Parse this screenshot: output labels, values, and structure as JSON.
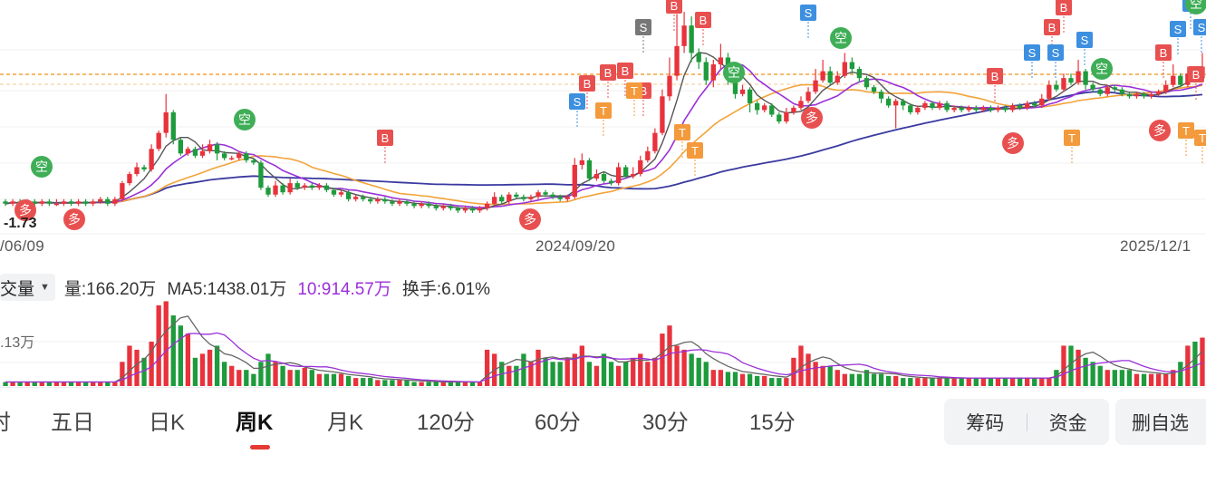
{
  "chart": {
    "low_label": "-1.73",
    "x_labels": [
      {
        "text": "/06/09"
      },
      {
        "text": "2024/09/20"
      },
      {
        "text": "2025/12/1"
      }
    ]
  },
  "markers": {
    "buy": "B",
    "sell": "S",
    "long": "多",
    "short": "空",
    "t": "T"
  },
  "volume": {
    "selector": "交量",
    "vol_text": "量:166.20万",
    "ma5_text": "MA5:1438.01万",
    "ma10_text": "10:914.57万",
    "turnover_text": "换手:6.01%",
    "axis_label": ".13万"
  },
  "tabs": [
    {
      "label": "时"
    },
    {
      "label": "五日"
    },
    {
      "label": "日K"
    },
    {
      "label": "周K"
    },
    {
      "label": "月K"
    },
    {
      "label": "120分"
    },
    {
      "label": "60分"
    },
    {
      "label": "30分"
    },
    {
      "label": "15分"
    }
  ],
  "buttons": {
    "chips": "筹码",
    "funds": "资金",
    "remove": "删自选"
  },
  "colors": {
    "up": "#e8323c",
    "down": "#1e9b3c",
    "ma5": "#555555",
    "ma10": "#9b30d9",
    "ma20": "#f2a33a",
    "ma60": "#3a3aa0",
    "buy": "#e85050",
    "sell": "#3d8fe0",
    "short": "#3fae57",
    "t": "#f39a3c"
  },
  "chart_data": {
    "type": "candlestick",
    "period": "weekly",
    "candles": [
      [
        3.1,
        3.0,
        3.2,
        2.9
      ],
      [
        3.0,
        3.1,
        3.2,
        2.9
      ],
      [
        3.1,
        3.0,
        3.2,
        2.9
      ],
      [
        3.0,
        3.1,
        3.2,
        2.9
      ],
      [
        3.1,
        3.0,
        3.2,
        2.9
      ],
      [
        3.0,
        3.1,
        3.2,
        2.9
      ],
      [
        3.1,
        3.0,
        3.2,
        2.9
      ],
      [
        3.0,
        3.0,
        3.2,
        2.9
      ],
      [
        3.0,
        3.1,
        3.2,
        2.9
      ],
      [
        3.1,
        3.0,
        3.2,
        2.9
      ],
      [
        3.0,
        3.1,
        3.2,
        2.9
      ],
      [
        3.1,
        3.0,
        3.2,
        2.9
      ],
      [
        3.0,
        3.1,
        3.2,
        2.9
      ],
      [
        3.1,
        3.2,
        3.3,
        3.0
      ],
      [
        3.2,
        3.0,
        3.3,
        2.9
      ],
      [
        3.0,
        3.2,
        3.3,
        2.9
      ],
      [
        3.2,
        3.9,
        4.0,
        3.1
      ],
      [
        3.9,
        4.3,
        4.4,
        3.8
      ],
      [
        4.3,
        4.6,
        4.8,
        4.2
      ],
      [
        4.6,
        4.5,
        4.7,
        4.4
      ],
      [
        4.5,
        5.4,
        5.6,
        4.4
      ],
      [
        5.4,
        6.1,
        6.2,
        5.3
      ],
      [
        6.1,
        7.0,
        7.8,
        5.9
      ],
      [
        7.0,
        5.8,
        7.1,
        5.6
      ],
      [
        5.8,
        5.2,
        5.9,
        5.1
      ],
      [
        5.2,
        5.4,
        5.5,
        5.1
      ],
      [
        5.4,
        5.1,
        5.5,
        5.0
      ],
      [
        5.1,
        5.3,
        5.6,
        5.0
      ],
      [
        5.3,
        5.6,
        5.8,
        5.2
      ],
      [
        5.6,
        5.2,
        5.7,
        4.9
      ],
      [
        5.2,
        5.0,
        5.3,
        4.9
      ],
      [
        5.0,
        5.0,
        5.1,
        4.9
      ],
      [
        5.0,
        5.2,
        5.3,
        4.9
      ],
      [
        5.2,
        4.9,
        5.3,
        4.8
      ],
      [
        4.9,
        4.8,
        5.0,
        4.7
      ],
      [
        4.8,
        3.7,
        4.9,
        3.6
      ],
      [
        3.7,
        3.4,
        3.8,
        3.3
      ],
      [
        3.4,
        3.8,
        4.0,
        3.3
      ],
      [
        3.8,
        3.5,
        3.9,
        3.4
      ],
      [
        3.5,
        3.9,
        4.1,
        3.4
      ],
      [
        3.9,
        3.7,
        4.0,
        3.6
      ],
      [
        3.7,
        3.8,
        3.9,
        3.6
      ],
      [
        3.8,
        3.7,
        3.9,
        3.6
      ],
      [
        3.7,
        3.8,
        3.9,
        3.6
      ],
      [
        3.8,
        3.6,
        3.9,
        3.5
      ],
      [
        3.6,
        3.4,
        3.7,
        3.3
      ],
      [
        3.4,
        3.5,
        3.6,
        3.3
      ],
      [
        3.5,
        3.2,
        3.6,
        3.1
      ],
      [
        3.2,
        3.3,
        3.4,
        3.1
      ],
      [
        3.3,
        3.2,
        3.4,
        3.1
      ],
      [
        3.2,
        3.1,
        3.3,
        3.0
      ],
      [
        3.1,
        3.2,
        3.3,
        3.0
      ],
      [
        3.2,
        3.1,
        3.3,
        3.0
      ],
      [
        3.1,
        3.0,
        3.2,
        2.9
      ],
      [
        3.0,
        3.1,
        3.2,
        2.9
      ],
      [
        3.1,
        3.0,
        3.2,
        2.9
      ],
      [
        3.0,
        2.9,
        3.1,
        2.8
      ],
      [
        2.9,
        3.0,
        3.1,
        2.8
      ],
      [
        3.0,
        2.9,
        3.1,
        2.8
      ],
      [
        2.9,
        2.8,
        3.0,
        2.7
      ],
      [
        2.8,
        2.9,
        3.0,
        2.7
      ],
      [
        2.9,
        2.8,
        3.0,
        2.7
      ],
      [
        2.8,
        2.7,
        2.9,
        2.6
      ],
      [
        2.7,
        2.8,
        2.9,
        2.6
      ],
      [
        2.8,
        2.7,
        2.9,
        2.6
      ],
      [
        2.7,
        2.8,
        2.9,
        2.6
      ],
      [
        2.8,
        3.0,
        3.1,
        2.7
      ],
      [
        3.0,
        3.3,
        3.5,
        2.9
      ],
      [
        3.3,
        3.1,
        3.4,
        3.0
      ],
      [
        3.1,
        3.4,
        3.5,
        3.0
      ],
      [
        3.4,
        3.3,
        3.5,
        3.2
      ],
      [
        3.3,
        3.2,
        3.4,
        3.1
      ],
      [
        3.2,
        3.3,
        3.4,
        3.1
      ],
      [
        3.3,
        3.5,
        3.6,
        3.2
      ],
      [
        3.5,
        3.4,
        3.6,
        3.3
      ],
      [
        3.4,
        3.3,
        3.5,
        3.2
      ],
      [
        3.3,
        3.2,
        3.4,
        3.1
      ],
      [
        3.2,
        3.3,
        3.4,
        3.1
      ],
      [
        3.3,
        4.7,
        5.0,
        3.2
      ],
      [
        4.7,
        4.9,
        5.2,
        4.5
      ],
      [
        4.9,
        4.1,
        5.0,
        4.0
      ],
      [
        4.1,
        4.3,
        4.5,
        4.0
      ],
      [
        4.3,
        4.0,
        4.4,
        3.9
      ],
      [
        4.0,
        3.9,
        4.1,
        3.8
      ],
      [
        3.9,
        4.6,
        4.8,
        3.8
      ],
      [
        4.6,
        4.2,
        4.7,
        4.1
      ],
      [
        4.2,
        4.3,
        4.6,
        4.1
      ],
      [
        4.3,
        4.9,
        5.1,
        4.2
      ],
      [
        4.9,
        5.3,
        5.5,
        4.8
      ],
      [
        5.3,
        6.1,
        6.3,
        5.2
      ],
      [
        6.1,
        7.7,
        8.0,
        6.0
      ],
      [
        7.7,
        8.6,
        9.4,
        7.5
      ],
      [
        8.6,
        9.9,
        11.3,
        8.4
      ],
      [
        9.9,
        10.8,
        11.4,
        9.6
      ],
      [
        10.8,
        9.6,
        11.2,
        9.2
      ],
      [
        9.6,
        9.2,
        9.8,
        8.9
      ],
      [
        9.2,
        8.4,
        9.4,
        8.2
      ],
      [
        8.4,
        9.1,
        9.3,
        8.1
      ],
      [
        9.1,
        9.4,
        10.0,
        8.9
      ],
      [
        9.4,
        8.5,
        9.6,
        8.2
      ],
      [
        8.5,
        7.8,
        8.7,
        7.6
      ],
      [
        7.8,
        8.0,
        8.2,
        7.7
      ],
      [
        8.0,
        7.4,
        8.1,
        7.0
      ],
      [
        7.4,
        7.1,
        7.5,
        6.9
      ],
      [
        7.1,
        7.3,
        7.4,
        7.0
      ],
      [
        7.3,
        6.9,
        7.4,
        6.8
      ],
      [
        6.9,
        6.6,
        7.0,
        6.5
      ],
      [
        6.6,
        7.0,
        7.2,
        6.5
      ],
      [
        7.0,
        7.2,
        7.3,
        6.9
      ],
      [
        7.2,
        7.5,
        7.7,
        7.1
      ],
      [
        7.5,
        7.9,
        8.1,
        7.4
      ],
      [
        7.9,
        8.4,
        8.9,
        7.8
      ],
      [
        8.4,
        8.8,
        9.3,
        8.3
      ],
      [
        8.8,
        8.3,
        9.0,
        8.2
      ],
      [
        8.3,
        8.6,
        8.8,
        8.2
      ],
      [
        8.6,
        9.2,
        9.6,
        8.5
      ],
      [
        9.2,
        8.9,
        9.4,
        8.7
      ],
      [
        8.9,
        8.5,
        9.0,
        8.3
      ],
      [
        8.5,
        8.1,
        8.6,
        8.0
      ],
      [
        8.1,
        7.9,
        8.2,
        7.8
      ],
      [
        7.9,
        7.6,
        8.0,
        7.4
      ],
      [
        7.6,
        7.3,
        7.7,
        7.2
      ],
      [
        7.3,
        7.5,
        7.6,
        6.3
      ],
      [
        7.5,
        7.3,
        7.6,
        7.1
      ],
      [
        7.3,
        7.0,
        7.4,
        6.9
      ],
      [
        7.0,
        7.2,
        7.3,
        6.9
      ],
      [
        7.2,
        7.4,
        7.5,
        7.1
      ],
      [
        7.4,
        7.2,
        7.5,
        7.1
      ],
      [
        7.2,
        7.4,
        7.5,
        7.1
      ],
      [
        7.4,
        7.1,
        7.5,
        7.0
      ],
      [
        7.1,
        7.2,
        7.3,
        7.0
      ],
      [
        7.2,
        7.1,
        7.3,
        7.0
      ],
      [
        7.1,
        7.2,
        7.3,
        7.0
      ],
      [
        7.2,
        7.1,
        7.3,
        7.0
      ],
      [
        7.1,
        7.2,
        7.3,
        7.0
      ],
      [
        7.2,
        7.1,
        7.3,
        7.0
      ],
      [
        7.1,
        7.2,
        7.3,
        7.0
      ],
      [
        7.2,
        7.1,
        7.3,
        7.0
      ],
      [
        7.1,
        7.3,
        7.4,
        7.0
      ],
      [
        7.3,
        7.2,
        7.4,
        7.1
      ],
      [
        7.2,
        7.4,
        7.5,
        7.1
      ],
      [
        7.4,
        7.3,
        7.5,
        7.2
      ],
      [
        7.3,
        7.6,
        7.8,
        7.2
      ],
      [
        7.6,
        8.2,
        8.4,
        7.5
      ],
      [
        8.2,
        8.0,
        8.4,
        7.9
      ],
      [
        8.0,
        8.5,
        8.7,
        7.9
      ],
      [
        8.5,
        8.3,
        8.7,
        8.2
      ],
      [
        8.3,
        8.8,
        9.3,
        8.2
      ],
      [
        8.8,
        8.2,
        8.9,
        8.0
      ],
      [
        8.2,
        8.0,
        8.3,
        7.9
      ],
      [
        8.0,
        7.8,
        8.1,
        7.7
      ],
      [
        7.8,
        8.1,
        8.2,
        7.7
      ],
      [
        8.1,
        8.0,
        8.2,
        7.9
      ],
      [
        8.0,
        7.8,
        8.1,
        7.7
      ],
      [
        7.8,
        7.7,
        7.9,
        7.6
      ],
      [
        7.7,
        7.8,
        7.9,
        7.6
      ],
      [
        7.8,
        7.7,
        7.9,
        7.6
      ],
      [
        7.7,
        7.8,
        7.9,
        7.6
      ],
      [
        7.8,
        7.9,
        8.0,
        7.7
      ],
      [
        7.9,
        8.2,
        8.4,
        7.8
      ],
      [
        8.2,
        8.6,
        9.1,
        8.1
      ],
      [
        8.6,
        8.2,
        8.7,
        8.1
      ],
      [
        8.2,
        8.7,
        9.0,
        8.1
      ],
      [
        8.7,
        8.5,
        9.0,
        8.3
      ],
      [
        8.5,
        9.0,
        9.6,
        8.4
      ]
    ],
    "volume": [
      2,
      2,
      2,
      2,
      2,
      2,
      2,
      2,
      2,
      2,
      2,
      2,
      2,
      2,
      2,
      2,
      12,
      20,
      18,
      14,
      22,
      40,
      42,
      35,
      30,
      26,
      14,
      16,
      18,
      20,
      12,
      10,
      8,
      8,
      6,
      12,
      16,
      12,
      10,
      8,
      8,
      9,
      8,
      6,
      6,
      6,
      6,
      5,
      4,
      4,
      4,
      3,
      3,
      3,
      3,
      3,
      2,
      2,
      2,
      2,
      2,
      2,
      2,
      2,
      2,
      2,
      18,
      16,
      12,
      10,
      10,
      16,
      12,
      18,
      14,
      12,
      12,
      14,
      16,
      20,
      12,
      10,
      16,
      12,
      10,
      12,
      14,
      16,
      12,
      14,
      26,
      30,
      20,
      18,
      16,
      14,
      12,
      8,
      8,
      7,
      7,
      6,
      6,
      5,
      5,
      4,
      4,
      4,
      14,
      20,
      16,
      12,
      10,
      10,
      8,
      6,
      6,
      6,
      8,
      6,
      6,
      5,
      5,
      4,
      4,
      4,
      4,
      4,
      4,
      4,
      4,
      4,
      4,
      4,
      4,
      4,
      4,
      4,
      4,
      4,
      4,
      4,
      4,
      4,
      8,
      20,
      20,
      18,
      14,
      12,
      10,
      8,
      8,
      8,
      8,
      6,
      6,
      6,
      6,
      6,
      8,
      12,
      20,
      22,
      24
    ]
  }
}
